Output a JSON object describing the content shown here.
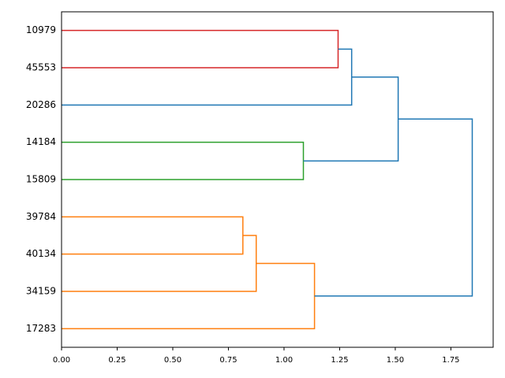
{
  "chart_data": {
    "type": "dendrogram",
    "orientation": "left",
    "xlim": [
      0,
      1.94
    ],
    "xticks": [
      {
        "value": 0,
        "label": "0.00"
      },
      {
        "value": 0.25,
        "label": "0.25"
      },
      {
        "value": 0.5,
        "label": "0.50"
      },
      {
        "value": 0.75,
        "label": "0.75"
      },
      {
        "value": 1,
        "label": "1.00"
      },
      {
        "value": 1.25,
        "label": "1.25"
      },
      {
        "value": 1.5,
        "label": "1.50"
      },
      {
        "value": 1.75,
        "label": "1.75"
      }
    ],
    "tree": {
      "height": 1.846,
      "color": "#1f77b4",
      "children": [
        {
          "height": 1.513,
          "color": "#1f77b4",
          "children": [
            {
              "height": 1.304,
              "color": "#1f77b4",
              "children": [
                {
                  "height": 1.243,
                  "color": "#d62728",
                  "children": [
                    "10979",
                    "45553"
                  ]
                },
                "20286"
              ]
            },
            {
              "height": 1.087,
              "color": "#2ca02c",
              "children": [
                "14184",
                "15809"
              ]
            }
          ]
        },
        {
          "height": 1.137,
          "color": "#ff7f0e",
          "children": [
            {
              "height": 0.875,
              "color": "#ff7f0e",
              "children": [
                {
                  "height": 0.815,
                  "color": "#ff7f0e",
                  "children": [
                    "39784",
                    "40134"
                  ]
                },
                "34159"
              ]
            },
            "17283"
          ]
        }
      ]
    }
  }
}
